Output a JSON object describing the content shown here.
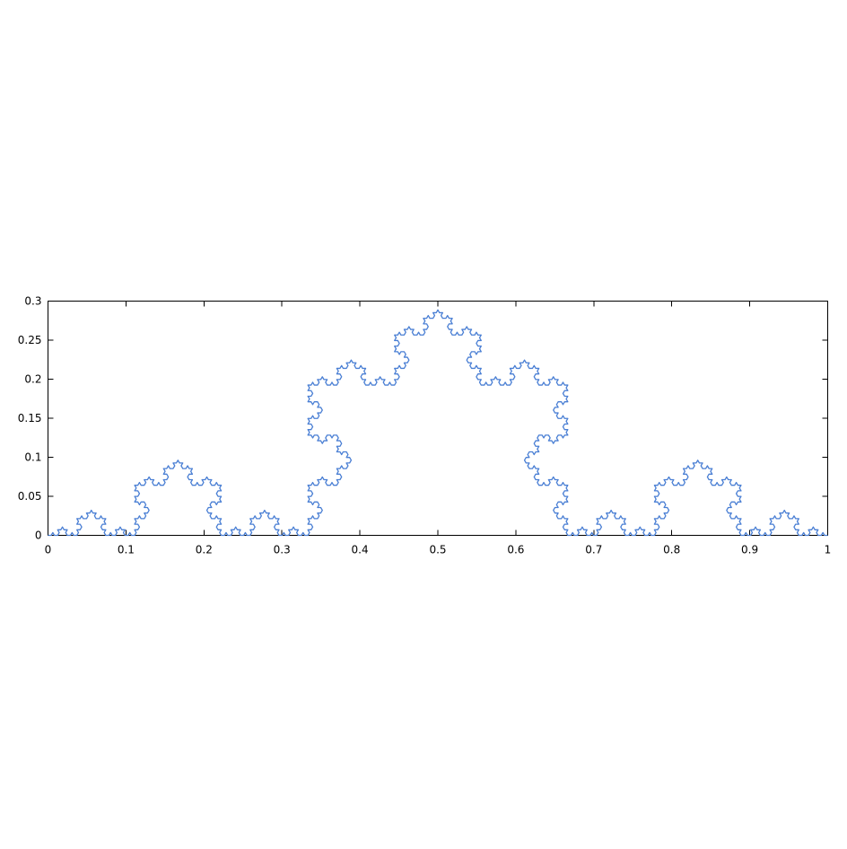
{
  "chart_data": {
    "type": "line",
    "title": "",
    "xlabel": "",
    "ylabel": "",
    "xlim": [
      0,
      1
    ],
    "ylim": [
      0,
      0.3
    ],
    "x_ticks": [
      0,
      0.1,
      0.2,
      0.3,
      0.4,
      0.5,
      0.6,
      0.7,
      0.8,
      0.9,
      1
    ],
    "x_tick_labels": [
      "0",
      "0.1",
      "0.2",
      "0.3",
      "0.4",
      "0.5",
      "0.6",
      "0.7",
      "0.8",
      "0.9",
      "1"
    ],
    "y_ticks": [
      0,
      0.05,
      0.1,
      0.15,
      0.2,
      0.25,
      0.3
    ],
    "y_tick_labels": [
      "0",
      "0.05",
      "0.1",
      "0.15",
      "0.2",
      "0.25",
      "0.3"
    ],
    "grid": false,
    "legend": "none",
    "series": [
      {
        "kind": "koch-curve",
        "start": [
          0,
          0
        ],
        "end": [
          1,
          0
        ],
        "iterations": 5,
        "peak": [
          0.5,
          0.2887
        ],
        "color": "#4a7fd4"
      }
    ]
  }
}
